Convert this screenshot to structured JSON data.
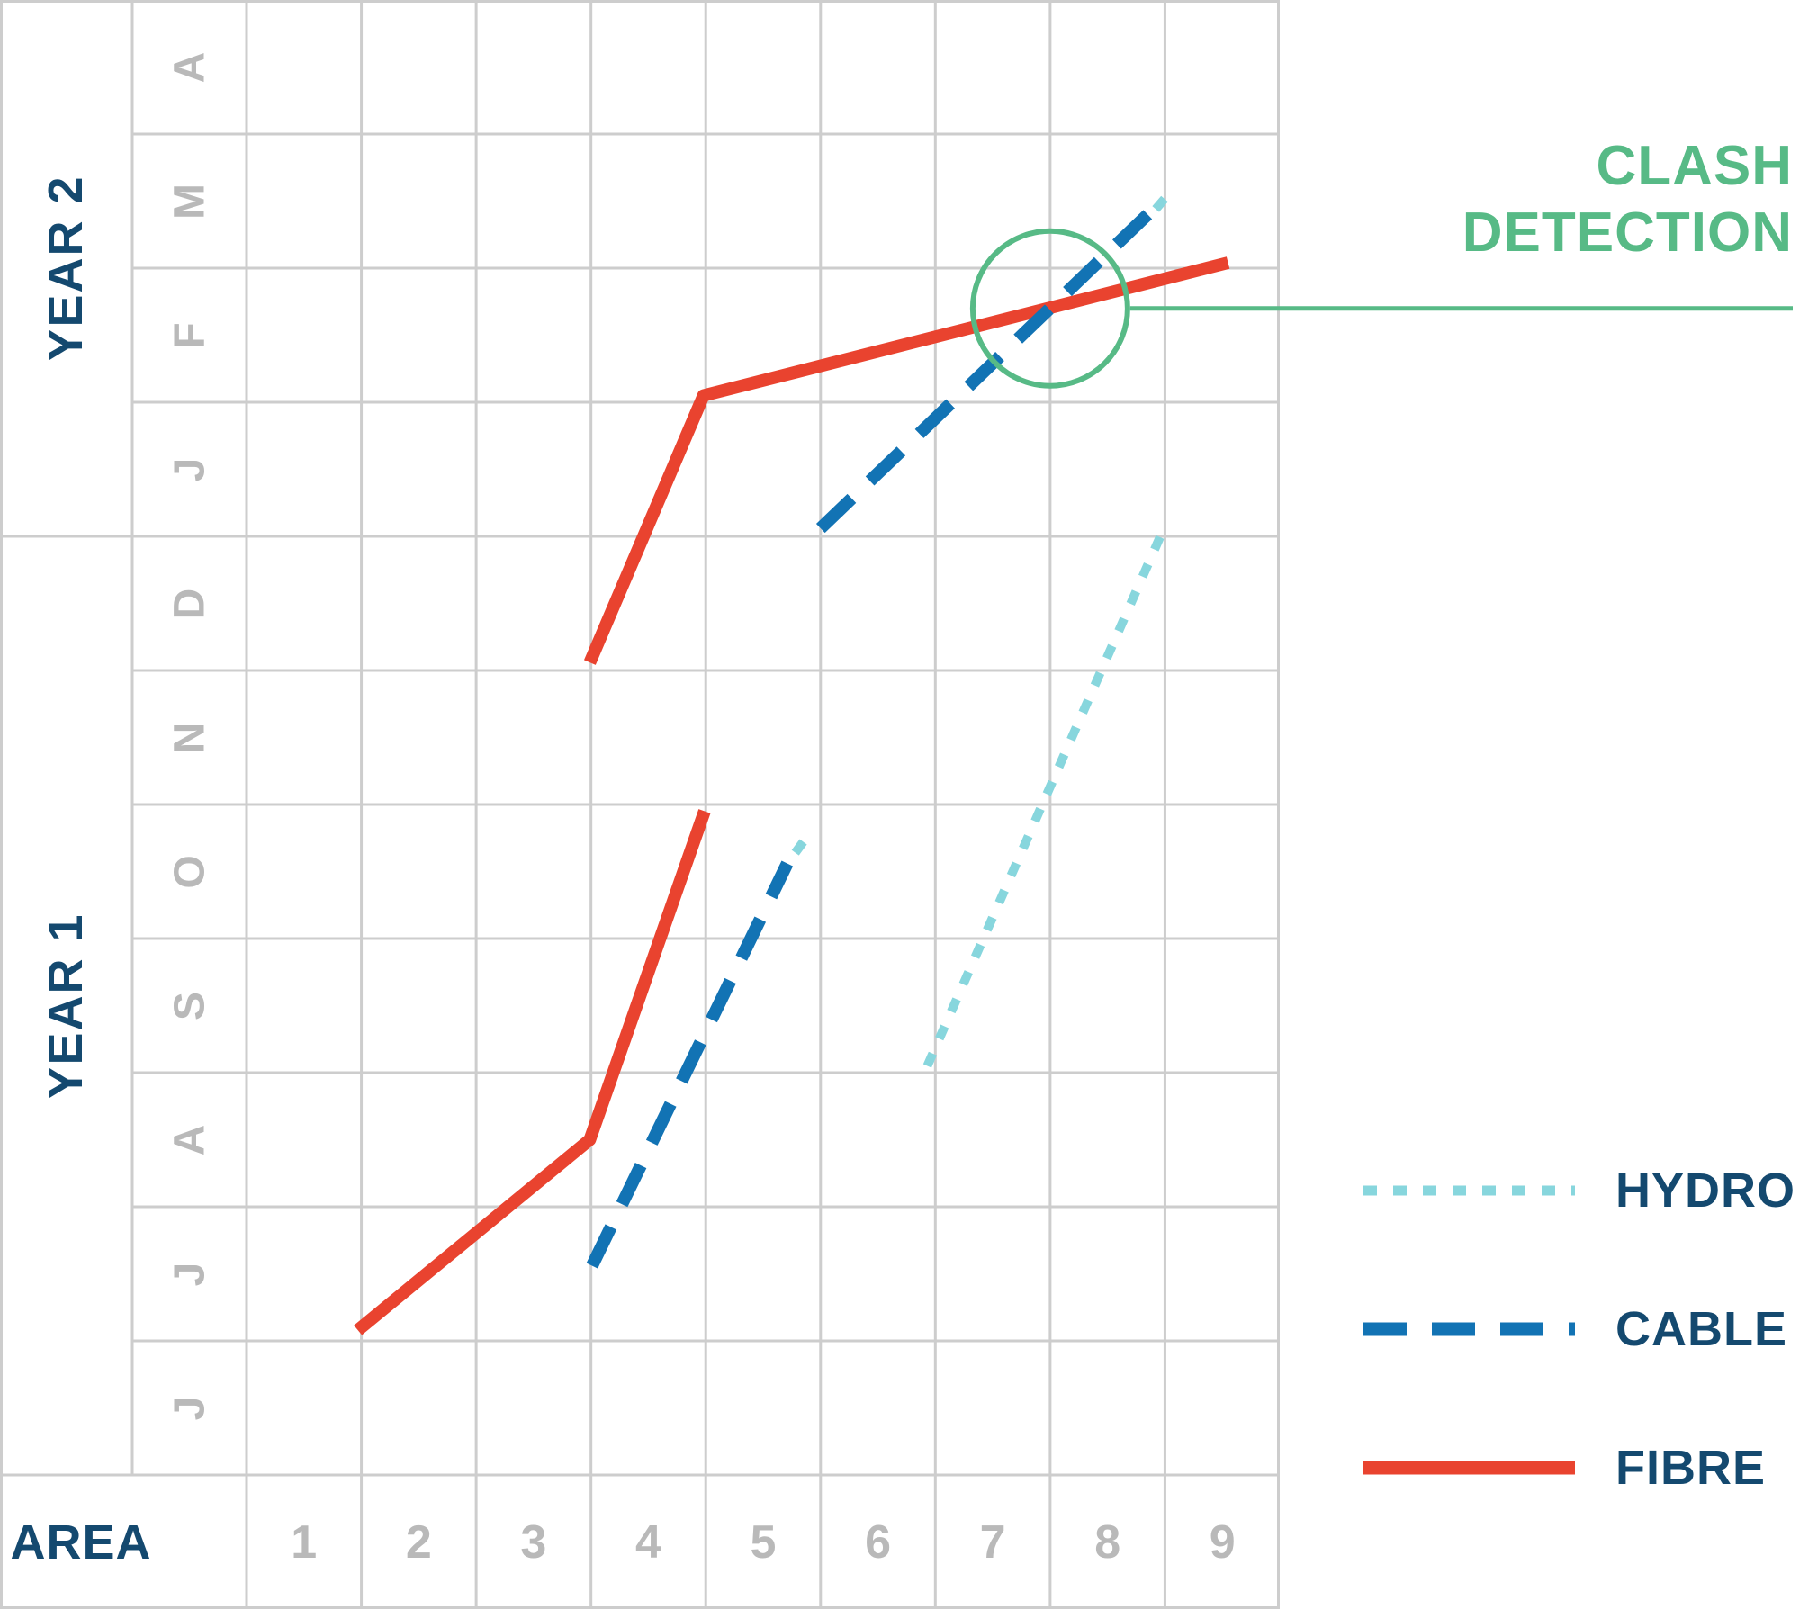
{
  "colors": {
    "background": "#ffffff",
    "grid": "#cdcdcd",
    "axis_text_muted": "#b9b9b9",
    "axis_text_primary": "#14496f"
  },
  "chart_data": {
    "type": "line",
    "title": "",
    "description": "Time-location schedule chart (months vs areas) showing planned service routes with a clash detection marker where CABLE crosses FIBRE",
    "x_axis": {
      "label": "AREA",
      "ticks": [
        "1",
        "2",
        "3",
        "4",
        "5",
        "6",
        "7",
        "8",
        "9"
      ]
    },
    "y_axis": {
      "years": [
        {
          "label": "YEAR 1",
          "months_bottom_to_top": [
            "J",
            "J",
            "A",
            "S",
            "O",
            "N",
            "D"
          ]
        },
        {
          "label": "YEAR 2",
          "months_bottom_to_top": [
            "J",
            "F",
            "M",
            "A"
          ]
        }
      ]
    },
    "series": [
      {
        "name": "FIBRE",
        "style": "solid",
        "color": "#e9432f",
        "segments": [
          [
            [
              0.97,
              1.08
            ],
            [
              2.99,
              2.5
            ],
            [
              3.99,
              4.95
            ]
          ],
          [
            [
              2.99,
              6.06
            ],
            [
              3.98,
              8.05
            ],
            [
              8.55,
              9.04
            ]
          ]
        ]
      },
      {
        "name": "CABLE",
        "style": "dashed",
        "color": "#1273b4",
        "segments": [
          [
            [
              3.01,
              1.56
            ],
            [
              4.71,
              4.56
            ]
          ],
          [
            [
              5.0,
              7.06
            ],
            [
              7.85,
              9.4
            ]
          ]
        ]
      },
      {
        "name": "HYDRO",
        "style": "dotted",
        "color": "#87d6dd",
        "segments": [
          [
            [
              5.93,
              3.05
            ],
            [
              7.96,
              7.0
            ]
          ],
          [
            [
              4.78,
              4.64
            ],
            [
              4.9,
              4.78
            ]
          ],
          [
            [
              7.92,
              9.44
            ],
            [
              8.04,
              9.56
            ]
          ]
        ]
      }
    ],
    "legend": [
      {
        "label": "HYDRO"
      },
      {
        "label": "CABLE"
      },
      {
        "label": "FIBRE"
      }
    ],
    "annotation": {
      "label_line1": "CLASH",
      "label_line2": "DETECTION",
      "color": "#57ba86",
      "clash_point": {
        "x": 7.0,
        "y": 8.7
      },
      "series_involved": [
        "CABLE",
        "FIBRE"
      ]
    },
    "units_note": "x in area-grid units (0 = left edge of area 1 column, 1 unit per area); y in month-row units above the bottom of the first Year-1 month row"
  }
}
